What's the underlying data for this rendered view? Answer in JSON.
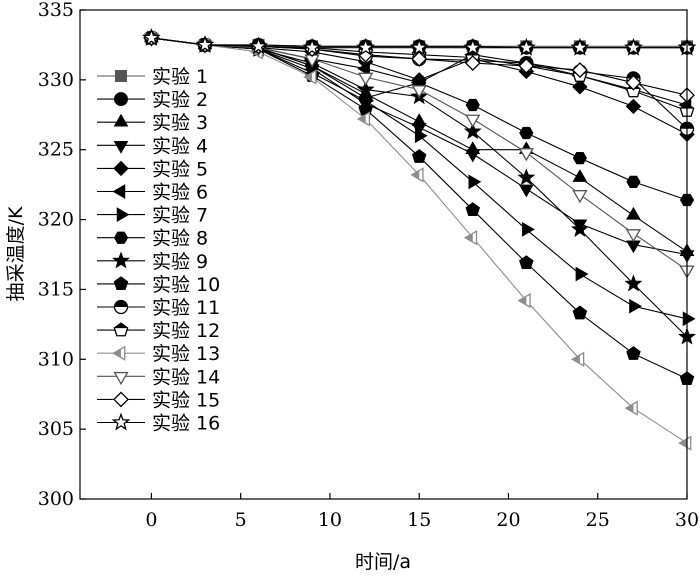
{
  "chart_data": {
    "type": "line",
    "xlabel": "时间/a",
    "ylabel": "抽采温度/K",
    "xlim": [
      -4,
      30
    ],
    "ylim": [
      300,
      335
    ],
    "xticks": [
      0,
      5,
      10,
      15,
      20,
      25,
      30
    ],
    "yticks": [
      300,
      305,
      310,
      315,
      320,
      325,
      330,
      335
    ],
    "grid": false,
    "legend_position": "left",
    "x": [
      0,
      3,
      6,
      9,
      12,
      15,
      18,
      21,
      24,
      27,
      30
    ],
    "series": [
      {
        "name": "实验 1",
        "marker": "square",
        "color": "#555555",
        "values": [
          333.0,
          332.5,
          332.5,
          332.4,
          332.4,
          332.4,
          332.4,
          332.4,
          332.4,
          332.4,
          332.4
        ]
      },
      {
        "name": "实验 2",
        "marker": "circle",
        "color": "#000000",
        "values": [
          333.0,
          332.5,
          332.5,
          332.4,
          332.4,
          332.4,
          332.4,
          332.3,
          332.3,
          332.3,
          332.3
        ]
      },
      {
        "name": "实验 3",
        "marker": "triangle-up",
        "color": "#000000",
        "values": [
          333.0,
          332.5,
          332.3,
          331.0,
          329.0,
          327.0,
          325.0,
          325.0,
          323.0,
          320.3,
          317.7
        ]
      },
      {
        "name": "实验 4",
        "marker": "triangle-down",
        "color": "#000000",
        "values": [
          333.0,
          332.5,
          332.2,
          330.8,
          328.3,
          326.6,
          324.7,
          322.2,
          319.7,
          318.2,
          317.5
        ]
      },
      {
        "name": "实验 5",
        "marker": "diamond",
        "color": "#000000",
        "values": [
          333.0,
          332.5,
          332.3,
          332.0,
          331.3,
          330.0,
          331.5,
          330.6,
          329.5,
          328.1,
          326.1
        ]
      },
      {
        "name": "实验 6",
        "marker": "triangle-left",
        "color": "#000000",
        "values": [
          333.0,
          332.5,
          332.3,
          331.5,
          330.8,
          329.8,
          331.8,
          331.2,
          330.3,
          329.3,
          328.2
        ]
      },
      {
        "name": "实验 7",
        "marker": "triangle-right",
        "color": "#000000",
        "values": [
          333.0,
          332.5,
          332.2,
          330.5,
          328.5,
          326.0,
          322.7,
          319.3,
          316.1,
          313.8,
          312.9
        ]
      },
      {
        "name": "实验 8",
        "marker": "hexagon",
        "color": "#000000",
        "values": [
          333.0,
          332.5,
          332.3,
          331.0,
          328.7,
          329.8,
          328.2,
          326.2,
          324.4,
          322.7,
          321.4
        ]
      },
      {
        "name": "实验 9",
        "marker": "star",
        "color": "#000000",
        "values": [
          333.0,
          332.5,
          332.2,
          331.2,
          329.3,
          328.8,
          326.3,
          323.0,
          319.3,
          315.4,
          311.6
        ]
      },
      {
        "name": "实验 10",
        "marker": "pentagon",
        "color": "#000000",
        "values": [
          333.0,
          332.5,
          332.2,
          330.3,
          327.9,
          324.5,
          320.7,
          316.9,
          313.3,
          310.4,
          308.6
        ]
      },
      {
        "name": "实验 11",
        "marker": "circle-half",
        "color": "#000000",
        "values": [
          333.0,
          332.5,
          332.4,
          332.2,
          331.7,
          331.5,
          331.4,
          331.2,
          330.6,
          330.1,
          326.5
        ]
      },
      {
        "name": "实验 12",
        "marker": "pentagon-half",
        "color": "#000000",
        "values": [
          333.0,
          332.5,
          332.4,
          332.3,
          332.0,
          331.8,
          331.6,
          331.0,
          330.3,
          329.2,
          327.8
        ]
      },
      {
        "name": "实验 13",
        "marker": "triangle-left-half",
        "color": "#8c8c8c",
        "values": [
          333.0,
          332.5,
          332.0,
          330.2,
          327.2,
          323.2,
          318.7,
          314.2,
          310.0,
          306.5,
          304.0
        ]
      },
      {
        "name": "实验 14",
        "marker": "triangle-down-open",
        "color": "#555555",
        "values": [
          333.0,
          332.5,
          332.3,
          331.5,
          330.2,
          329.3,
          327.2,
          324.8,
          321.8,
          319.0,
          316.4
        ]
      },
      {
        "name": "实验 15",
        "marker": "diamond-open",
        "color": "#000000",
        "values": [
          333.0,
          332.5,
          332.4,
          332.2,
          331.8,
          331.5,
          331.2,
          331.0,
          330.7,
          329.8,
          328.9
        ]
      },
      {
        "name": "实验 16",
        "marker": "star-open",
        "color": "#000000",
        "values": [
          333.0,
          332.5,
          332.4,
          332.3,
          332.3,
          332.3,
          332.3,
          332.3,
          332.3,
          332.3,
          332.3
        ]
      }
    ]
  }
}
